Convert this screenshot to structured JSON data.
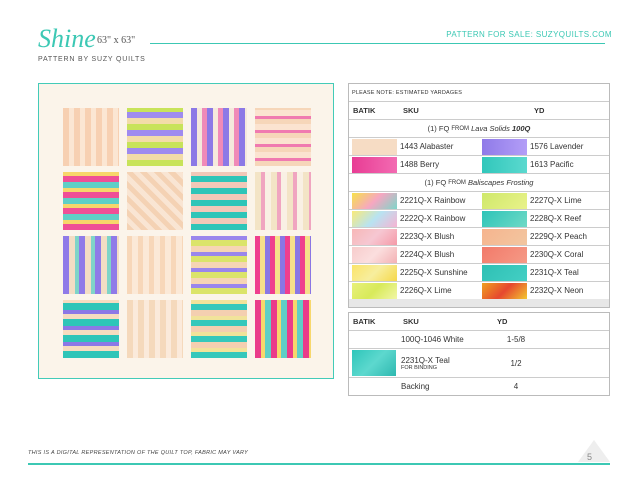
{
  "header": {
    "title": "Shine",
    "size": "63\" x 63\"",
    "for_sale": "PATTERN FOR SALE: SUZYQUILTS.COM",
    "byline": "PATTERN BY SUZY QUILTS"
  },
  "table1": {
    "note": "PLEASE NOTE: ESTIMATED YARDAGES",
    "col_batik": "BATIK",
    "col_sku": "SKU",
    "col_yd": "YD",
    "section1": {
      "prefix": "(1) FQ",
      "from": "FROM",
      "collection": "Lava Solids",
      "code": "100Q"
    },
    "solids": [
      {
        "left": "1443 Alabaster",
        "right": "1576 Lavender"
      },
      {
        "left": "1488 Berry",
        "right": "1613 Pacific"
      }
    ],
    "section2": {
      "prefix": "(1) FQ",
      "from": "FROM",
      "collection": "Baliscapes Frosting"
    },
    "prints": [
      {
        "left": "2221Q-X Rainbow",
        "right": "2227Q-X Lime"
      },
      {
        "left": "2222Q-X Rainbow",
        "right": "2228Q-X Reef"
      },
      {
        "left": "2223Q-X Blush",
        "right": "2229Q-X Peach"
      },
      {
        "left": "2224Q-X Blush",
        "right": "2230Q-X Coral"
      },
      {
        "left": "2225Q-X Sunshine",
        "right": "2231Q-X Teal"
      },
      {
        "left": "2226Q-X Lime",
        "right": "2232Q-X Neon"
      }
    ]
  },
  "table2": {
    "col_batik": "BATIK",
    "col_sku": "SKU",
    "col_yd": "YD",
    "rows": [
      {
        "sku": "100Q-1046 White",
        "yd": "1-5/8",
        "sub": ""
      },
      {
        "sku": "2231Q-X Teal",
        "yd": "1/2",
        "sub": "FOR BINDING"
      },
      {
        "sku": "Backing",
        "yd": "4",
        "sub": ""
      }
    ]
  },
  "footer": {
    "note": "THIS IS A DIGITAL REPRESENTATION OF THE QUILT TOP, FABRIC MAY VARY",
    "page": "5"
  },
  "colors": {
    "accent": "#3cc8b4",
    "alabaster": "#f6dcc4",
    "lavender": "#a18df0",
    "berry": "#ec4aa0",
    "pacific": "#3dd0c4"
  }
}
